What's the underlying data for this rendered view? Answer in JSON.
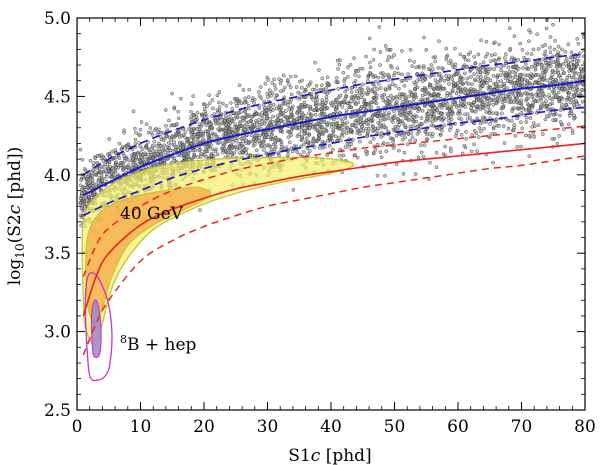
{
  "chart_data": {
    "type": "scatter",
    "xlabel_base": "S1",
    "xlabel_italic": "c",
    "xlabel_unit": " [phd]",
    "ylabel_pre": "log",
    "ylabel_sub": "10",
    "ylabel_mid": "(S2",
    "ylabel_italic": "c",
    "ylabel_unit": " [phd])",
    "xlim": [
      0,
      80
    ],
    "ylim": [
      2.5,
      5.0
    ],
    "xticks": [
      0,
      10,
      20,
      30,
      40,
      50,
      60,
      70,
      80
    ],
    "yticks": [
      2.5,
      3.0,
      3.5,
      4.0,
      4.5,
      5.0
    ],
    "xtick_labels": [
      "0",
      "10",
      "20",
      "30",
      "40",
      "50",
      "60",
      "70",
      "80"
    ],
    "ytick_labels": [
      "2.5",
      "3.0",
      "3.5",
      "4.0",
      "4.5",
      "5.0"
    ],
    "annotations": {
      "wimp_label": "40 GeV",
      "b8_sup": "8",
      "b8_text": "B + hep"
    },
    "colors": {
      "er_band": "#1a1acc",
      "nr_band": "#ee2222",
      "wimp_outer_fill": "#f4f06a",
      "wimp_inner_fill": "#f5a945",
      "wimp_outline": "#c8c23a",
      "b8_outline": "#cc33cc",
      "b8_inner_fill": "#9b86c9",
      "points": "#333333"
    },
    "er_band": {
      "x": [
        1,
        5,
        10,
        15,
        20,
        25,
        30,
        35,
        40,
        45,
        50,
        55,
        60,
        65,
        70,
        75,
        80
      ],
      "median": [
        3.87,
        3.95,
        4.05,
        4.13,
        4.2,
        4.25,
        4.29,
        4.33,
        4.37,
        4.4,
        4.43,
        4.46,
        4.49,
        4.52,
        4.55,
        4.57,
        4.6
      ],
      "upper": [
        4.0,
        4.1,
        4.2,
        4.28,
        4.35,
        4.41,
        4.46,
        4.5,
        4.54,
        4.58,
        4.61,
        4.64,
        4.67,
        4.7,
        4.72,
        4.75,
        4.77
      ],
      "lower": [
        3.74,
        3.82,
        3.9,
        3.98,
        4.04,
        4.09,
        4.13,
        4.17,
        4.2,
        4.24,
        4.27,
        4.3,
        4.33,
        4.35,
        4.38,
        4.41,
        4.43
      ]
    },
    "nr_band": {
      "x": [
        1,
        3,
        5,
        10,
        15,
        20,
        25,
        30,
        35,
        40,
        45,
        50,
        55,
        60,
        65,
        70,
        75,
        80
      ],
      "median": [
        3.1,
        3.35,
        3.5,
        3.68,
        3.78,
        3.85,
        3.91,
        3.95,
        3.99,
        4.02,
        4.05,
        4.08,
        4.1,
        4.12,
        4.14,
        4.16,
        4.18,
        4.2
      ],
      "upper": [
        3.35,
        3.55,
        3.66,
        3.8,
        3.9,
        3.97,
        4.03,
        4.07,
        4.11,
        4.14,
        4.17,
        4.19,
        4.21,
        4.23,
        4.25,
        4.27,
        4.29,
        4.31
      ],
      "lower": [
        2.85,
        3.05,
        3.2,
        3.45,
        3.58,
        3.67,
        3.74,
        3.8,
        3.84,
        3.88,
        3.92,
        3.95,
        3.98,
        4.01,
        4.04,
        4.06,
        4.09,
        4.12
      ]
    },
    "wimp_outer": [
      [
        1,
        3.2
      ],
      [
        0.8,
        3.55
      ],
      [
        1.2,
        3.75
      ],
      [
        3,
        3.86
      ],
      [
        6,
        3.95
      ],
      [
        10,
        4.02
      ],
      [
        15,
        4.07
      ],
      [
        22,
        4.1
      ],
      [
        30,
        4.11
      ],
      [
        37,
        4.11
      ],
      [
        42,
        4.09
      ],
      [
        43.5,
        4.06
      ],
      [
        40,
        4.01
      ],
      [
        32,
        3.95
      ],
      [
        24,
        3.87
      ],
      [
        18,
        3.78
      ],
      [
        12,
        3.65
      ],
      [
        8,
        3.47
      ],
      [
        5.5,
        3.28
      ],
      [
        4,
        3.05
      ],
      [
        3,
        2.92
      ],
      [
        2,
        2.95
      ],
      [
        1.2,
        3.05
      ]
    ],
    "wimp_inner": [
      [
        1.5,
        3.25
      ],
      [
        1.5,
        3.55
      ],
      [
        2.5,
        3.7
      ],
      [
        5,
        3.8
      ],
      [
        9,
        3.86
      ],
      [
        14,
        3.9
      ],
      [
        19,
        3.92
      ],
      [
        21,
        3.87
      ],
      [
        17,
        3.78
      ],
      [
        12,
        3.68
      ],
      [
        8,
        3.55
      ],
      [
        5.5,
        3.35
      ],
      [
        4,
        3.15
      ],
      [
        3,
        3.05
      ],
      [
        2.2,
        3.08
      ]
    ],
    "b8_outer": [
      [
        2,
        2.72
      ],
      [
        1.5,
        2.95
      ],
      [
        1.3,
        3.2
      ],
      [
        1.8,
        3.36
      ],
      [
        3.2,
        3.35
      ],
      [
        4.8,
        3.2
      ],
      [
        5.5,
        3.0
      ],
      [
        5.2,
        2.8
      ],
      [
        4.5,
        2.72
      ],
      [
        3.2,
        2.69
      ]
    ],
    "b8_inner": [
      [
        2.6,
        2.85
      ],
      [
        2.3,
        3.0
      ],
      [
        2.4,
        3.15
      ],
      [
        3.0,
        3.2
      ],
      [
        3.6,
        3.1
      ],
      [
        3.8,
        2.95
      ],
      [
        3.5,
        2.85
      ]
    ],
    "er_points_count": 3600
  }
}
